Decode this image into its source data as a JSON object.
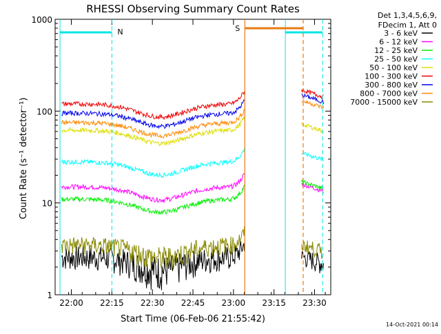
{
  "chart_data": {
    "type": "line",
    "title": "RHESSI Observing Summary Count Rates",
    "xlabel": "Start Time (06-Feb-06 21:55:42)",
    "ylabel": "Count Rate (s⁻¹ detector⁻¹)",
    "y_scale": "log",
    "ylim": [
      1,
      1000
    ],
    "xlim_minutes": [
      21.9,
      23.6
    ],
    "x_tick_labels": [
      "22:00",
      "22:15",
      "22:30",
      "22:45",
      "23:00",
      "23:15",
      "23:30"
    ],
    "x_tick_hours": [
      22.0,
      22.25,
      22.5,
      22.75,
      23.0,
      23.25,
      23.5
    ],
    "y_tick_labels": [
      "1",
      "10",
      "100",
      "1000"
    ],
    "y_tick_values": [
      1,
      10,
      100,
      1000
    ],
    "legend_header": [
      "Det 1,3,4,5,6,9,",
      "FDecim 1, Att 0"
    ],
    "legend_position": "right",
    "grid": false,
    "flag_labels": [
      {
        "text": "N",
        "color": "#00e5e5"
      },
      {
        "text": "S",
        "color": "#e87a10"
      }
    ],
    "markers": {
      "night_start": [
        21.93,
        22.25
      ],
      "night_vlines": [
        21.93,
        22.25,
        23.32,
        23.55
      ],
      "saa_vlines": [
        23.07,
        23.43
      ],
      "data_gap": [
        23.07,
        23.42
      ]
    },
    "series": [
      {
        "name": "3 - 6 keV",
        "color": "#000000",
        "level_a": 2.6,
        "level_b": 2.6
      },
      {
        "name": "6 - 12 keV",
        "color": "#ff00ff",
        "level_a": 15,
        "level_b": 16
      },
      {
        "name": "12 - 25 keV",
        "color": "#00ee00",
        "level_a": 11,
        "level_b": 17
      },
      {
        "name": "25 - 50 keV",
        "color": "#00ffff",
        "level_a": 28,
        "level_b": 35
      },
      {
        "name": "50 - 100 keV",
        "color": "#dddd00",
        "level_a": 62,
        "level_b": 72
      },
      {
        "name": "100 - 300 keV",
        "color": "#ee0000",
        "level_a": 120,
        "level_b": 170
      },
      {
        "name": "300 - 800 keV",
        "color": "#0000ee",
        "level_a": 95,
        "level_b": 150
      },
      {
        "name": "800 - 7000 keV",
        "color": "#ff8800",
        "level_a": 75,
        "level_b": 130
      },
      {
        "name": "7000 - 15000 keV",
        "color": "#888800",
        "level_a": 3.5,
        "level_b": 3.5
      }
    ]
  },
  "footer": {
    "timestamp": "14-Oct-2021 00:14"
  }
}
